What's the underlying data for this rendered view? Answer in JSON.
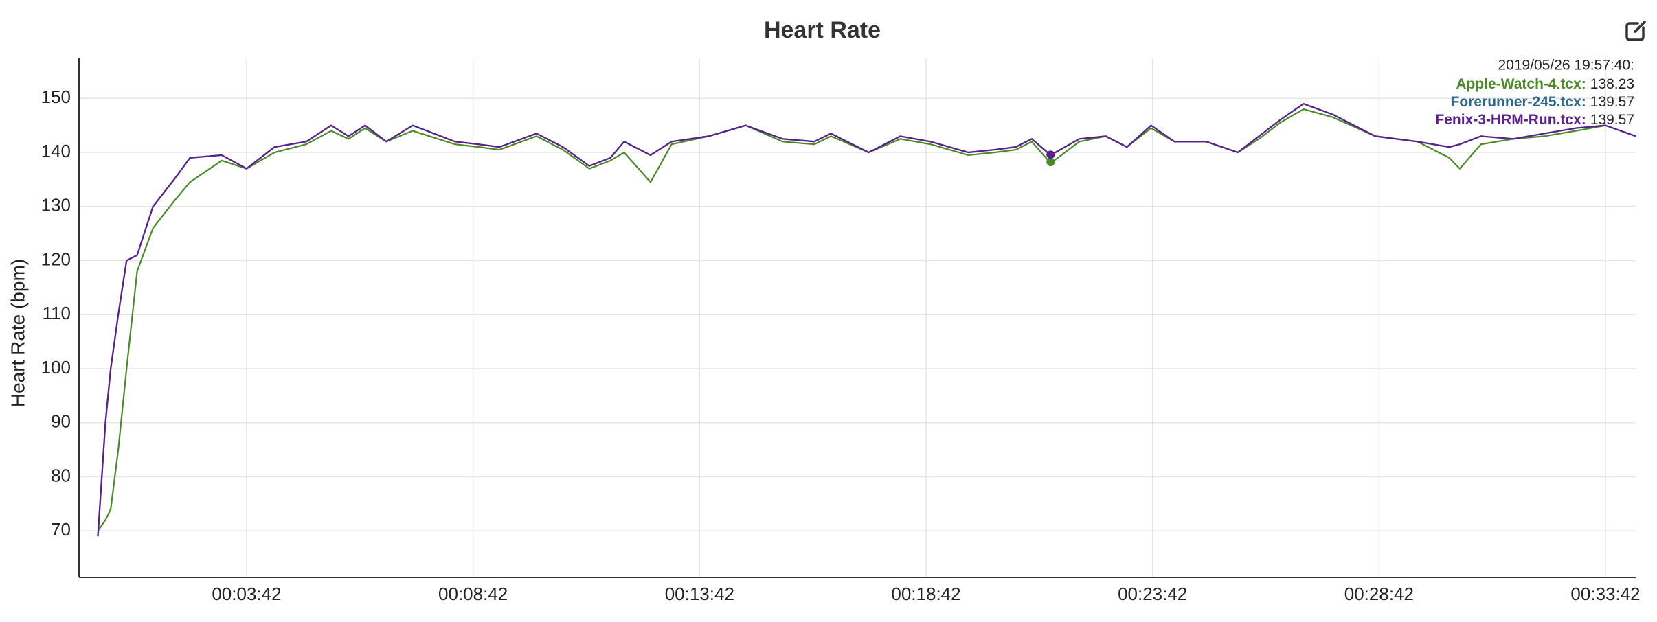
{
  "chart_data": {
    "type": "line",
    "title": "Heart Rate",
    "y_label": "Heart Rate (bpm)",
    "xlim": [
      0,
      2062
    ],
    "ylim": [
      61.4,
      157.4
    ],
    "xticks": [
      {
        "value": 222,
        "label": "00:03:42"
      },
      {
        "value": 522,
        "label": "00:08:42"
      },
      {
        "value": 822,
        "label": "00:13:42"
      },
      {
        "value": 1122,
        "label": "00:18:42"
      },
      {
        "value": 1422,
        "label": "00:23:42"
      },
      {
        "value": 1722,
        "label": "00:28:42"
      },
      {
        "value": 2022,
        "label": "00:33:42"
      }
    ],
    "yticks": [
      70,
      80,
      90,
      100,
      110,
      120,
      130,
      140,
      150
    ],
    "grid": true,
    "x": [
      25,
      35,
      42,
      52,
      63,
      77,
      98,
      126,
      147,
      189,
      222,
      259,
      301,
      334,
      357,
      379,
      407,
      442,
      498,
      529,
      557,
      606,
      641,
      676,
      704,
      722,
      757,
      785,
      834,
      883,
      932,
      974,
      996,
      1046,
      1088,
      1128,
      1178,
      1213,
      1241,
      1262,
      1287,
      1325,
      1360,
      1388,
      1420,
      1451,
      1493,
      1535,
      1563,
      1591,
      1622,
      1661,
      1717,
      1773,
      1815,
      1829,
      1857,
      1900,
      1941,
      1983,
      2022,
      2062
    ],
    "series": [
      {
        "name": "Apple-Watch-4.tcx:",
        "color": "#4a8a24",
        "values": [
          70,
          72,
          74,
          85,
          100,
          118,
          126,
          131,
          134.5,
          138.5,
          137,
          140,
          141.5,
          144,
          142.5,
          144.5,
          142,
          144,
          141.5,
          141,
          140.5,
          143,
          140.5,
          137,
          138.5,
          140,
          134.5,
          141.5,
          143,
          145,
          142,
          141.5,
          143,
          140,
          142.5,
          141.5,
          139.5,
          140,
          140.5,
          142,
          138,
          142,
          143,
          141,
          144.5,
          142,
          142,
          140,
          142.5,
          145.5,
          148,
          146.5,
          143,
          142,
          139,
          137,
          141.5,
          142.5,
          143,
          144,
          145,
          143
        ]
      },
      {
        "name": "Forerunner-245.tcx:",
        "color": "#2d6a8a",
        "values": [
          69,
          90,
          100,
          110,
          120,
          121,
          130,
          135,
          139,
          139.5,
          137,
          141,
          142,
          145,
          143,
          145,
          142,
          145,
          142,
          141.5,
          141,
          143.5,
          141,
          137.5,
          139,
          142,
          139.5,
          142,
          143,
          145,
          142.5,
          142,
          143.5,
          140,
          143,
          142,
          140,
          140.5,
          141,
          142.5,
          139.5,
          142.5,
          143,
          141,
          145,
          142,
          142,
          140,
          143,
          146,
          149,
          147,
          143,
          142,
          141,
          141.5,
          143,
          142.5,
          143.5,
          144.5,
          145,
          143
        ]
      },
      {
        "name": "Fenix-3-HRM-Run.tcx:",
        "color": "#5b1f8e",
        "values": [
          69,
          90,
          100,
          110,
          120,
          121,
          130,
          135,
          139,
          139.5,
          137,
          141,
          142,
          145,
          143,
          145,
          142,
          145,
          142,
          141.5,
          141,
          143.5,
          141,
          137.5,
          139,
          142,
          139.5,
          142,
          143,
          145,
          142.5,
          142,
          143.5,
          140,
          143,
          142,
          140,
          140.5,
          141,
          142.5,
          139.5,
          142.5,
          143,
          141,
          145,
          142,
          142,
          140,
          143,
          146,
          149,
          147,
          143,
          142,
          141,
          141.5,
          143,
          142.5,
          143.5,
          144.5,
          145,
          143
        ]
      }
    ],
    "hover": {
      "time": "2019/05/26 19:57:40:",
      "x": 1287,
      "values": [
        138.23,
        139.57,
        139.57
      ]
    }
  }
}
